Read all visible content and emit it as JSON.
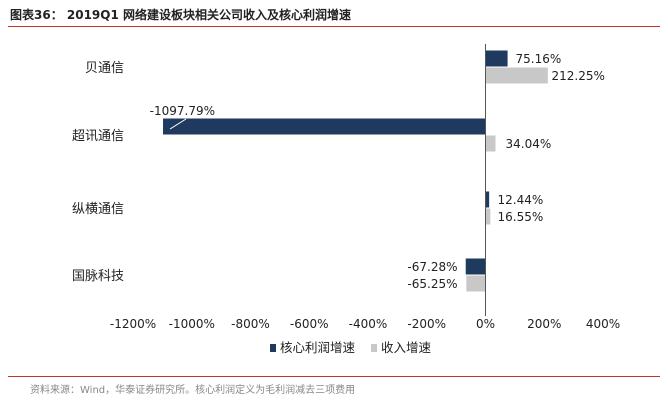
{
  "header": {
    "title": "图表36：  2019Q1  网络建设板块相关公司收入及核心利润增速"
  },
  "footer": {
    "source": "资料来源：Wind，华泰证券研究所。核心利润定义为毛利润减去三项费用"
  },
  "chart_data": {
    "type": "bar",
    "orientation": "horizontal",
    "title": "2019Q1  网络建设板块相关公司收入及核心利润增速",
    "categories": [
      "贝通信",
      "超讯通信",
      "纵横通信",
      "国脉科技"
    ],
    "series": [
      {
        "name": "核心利润增速",
        "color": "#1f3a5f",
        "values": [
          75.16,
          -1097.79,
          12.44,
          -67.28
        ],
        "labels": [
          "75.16%",
          "-1097.79%",
          "12.44%",
          "-67.28%"
        ]
      },
      {
        "name": "收入增速",
        "color": "#c8c8c8",
        "values": [
          212.25,
          34.04,
          16.55,
          -65.25
        ],
        "labels": [
          "212.25%",
          "34.04%",
          "16.55%",
          "-65.25%"
        ]
      }
    ],
    "xlim": [
      -1200,
      400
    ],
    "xticks": [
      -1200,
      -1000,
      -800,
      -600,
      -400,
      -200,
      0,
      200,
      400
    ],
    "xtick_labels": [
      "-1200%",
      "-1000%",
      "-800%",
      "-600%",
      "-400%",
      "-200%",
      "0%",
      "200%",
      "400%"
    ],
    "legend_position": "bottom",
    "grid": false
  }
}
